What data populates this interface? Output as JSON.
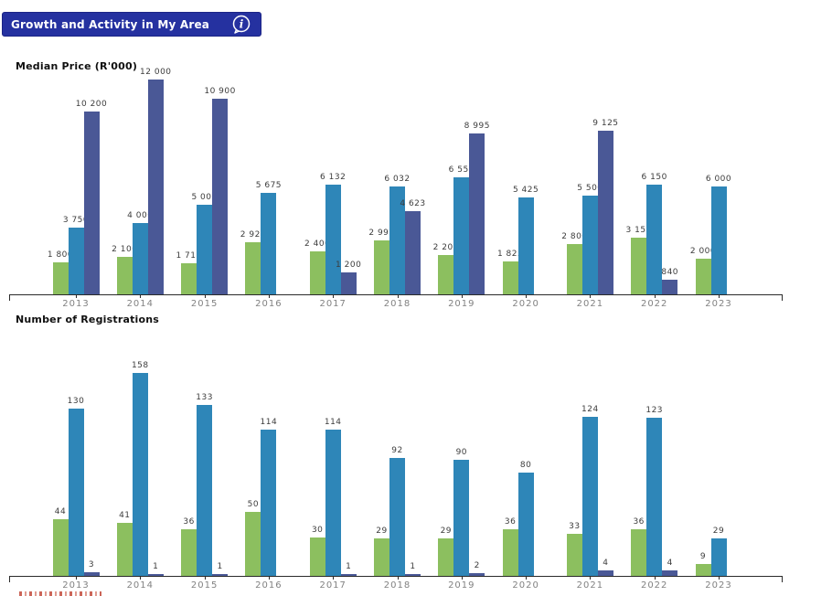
{
  "header": {
    "title": "Growth and Activity in My Area",
    "info_icon": "info-speech-bubble-icon"
  },
  "colors": {
    "header_bg": "#2531A0",
    "series_green": "#8CBF5F",
    "series_teal": "#2E86B8",
    "series_navy": "#4A5896",
    "axis": "#2a2a2a",
    "x_labels": "#828282",
    "value_labels": "#3c3c3c"
  },
  "chart_data": [
    {
      "type": "bar",
      "title": "Median Price (R'000)",
      "categories": [
        "2013",
        "2014",
        "2015",
        "2016",
        "2017",
        "2018",
        "2019",
        "2020",
        "2021",
        "2022",
        "2023"
      ],
      "ylim": [
        0,
        12250
      ],
      "grid": false,
      "legend": "none",
      "series": [
        {
          "name": "green",
          "color": "#8CBF5F",
          "values": [
            1800,
            2100,
            1712,
            2922,
            2400,
            2995,
            2200,
            1825,
            2800,
            3150,
            2000
          ],
          "labels": [
            "1 800",
            "2 100",
            "1 712",
            "2 922",
            "2 400",
            "2 995",
            "2 200",
            "1 825",
            "2 800",
            "3 150",
            "2 000"
          ]
        },
        {
          "name": "teal",
          "color": "#2E86B8",
          "values": [
            3750,
            4000,
            5000,
            5675,
            6132,
            6032,
            6550,
            5425,
            5500,
            6150,
            6000
          ],
          "labels": [
            "3 750",
            "4 000",
            "5 000",
            "5 675",
            "6 132",
            "6 032",
            "6 550",
            "5 425",
            "5 500",
            "6 150",
            "6 000"
          ]
        },
        {
          "name": "navy",
          "color": "#4A5896",
          "values": [
            10200,
            12000,
            10900,
            null,
            1200,
            4623,
            8995,
            null,
            9125,
            840,
            null
          ],
          "labels": [
            "10 200",
            "12 000",
            "10 900",
            "",
            "1 200",
            "4 623",
            "8 995",
            "",
            "9 125",
            "840",
            ""
          ]
        }
      ]
    },
    {
      "type": "bar",
      "title": "Number of Registrations",
      "categories": [
        "2013",
        "2014",
        "2015",
        "2016",
        "2017",
        "2018",
        "2019",
        "2020",
        "2021",
        "2022",
        "2023"
      ],
      "ylim": [
        0,
        160
      ],
      "grid": false,
      "legend": "none",
      "series": [
        {
          "name": "green",
          "color": "#8CBF5F",
          "values": [
            44,
            41,
            36,
            50,
            30,
            29,
            29,
            36,
            33,
            36,
            9
          ],
          "labels": [
            "44",
            "41",
            "36",
            "50",
            "30",
            "29",
            "29",
            "36",
            "33",
            "36",
            "9"
          ]
        },
        {
          "name": "teal",
          "color": "#2E86B8",
          "values": [
            130,
            158,
            133,
            114,
            114,
            92,
            90,
            80,
            124,
            123,
            29
          ],
          "labels": [
            "130",
            "158",
            "133",
            "114",
            "114",
            "92",
            "90",
            "80",
            "124",
            "123",
            "29"
          ]
        },
        {
          "name": "navy",
          "color": "#4A5896",
          "values": [
            3,
            1,
            1,
            null,
            1,
            1,
            2,
            null,
            4,
            4,
            null
          ],
          "labels": [
            "3",
            "1",
            "1",
            "",
            "1",
            "1",
            "2",
            "",
            "4",
            "4",
            ""
          ]
        }
      ]
    }
  ]
}
